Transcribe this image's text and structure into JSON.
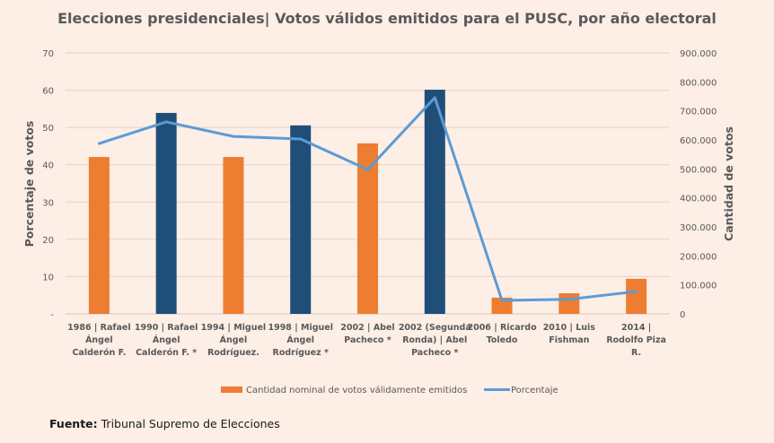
{
  "chart_data": {
    "type": "bar",
    "title": "Elecciones presidenciales| Votos válidos emitidos para el PUSC, por año electoral",
    "categories": [
      [
        "1986 | Rafael",
        "Ángel",
        "Calderón F."
      ],
      [
        "1990 | Rafael",
        "Ángel",
        "Calderón F. *"
      ],
      [
        "1994 | Miguel",
        "Ángel",
        "Rodríguez."
      ],
      [
        "1998 | Miguel",
        "Ángel",
        "Rodríguez *"
      ],
      [
        "2002 | Abel",
        "Pacheco *"
      ],
      [
        "2002 (Segunda",
        "Ronda) | Abel",
        "Pacheco *"
      ],
      [
        "2006 | Ricardo",
        "Toledo"
      ],
      [
        "2010 | Luis",
        "Fishman"
      ],
      [
        "2014 |",
        "Rodolfo Piza",
        "R."
      ]
    ],
    "series": [
      {
        "name": "Cantidad nominal de votos válidamente emitidos",
        "type": "bar",
        "axis": "right",
        "values": [
          541000,
          693000,
          541000,
          650000,
          588000,
          773000,
          56000,
          71000,
          121000
        ],
        "colors": [
          "#ED7D31",
          "#1F4E79",
          "#ED7D31",
          "#1F4E79",
          "#ED7D31",
          "#1F4E79",
          "#ED7D31",
          "#ED7D31",
          "#ED7D31"
        ]
      },
      {
        "name": "Porcentaje",
        "type": "line",
        "axis": "left",
        "values": [
          45.7,
          51.5,
          47.6,
          46.9,
          38.7,
          58.0,
          3.6,
          3.9,
          6.0
        ],
        "color": "#5B9BD5"
      }
    ],
    "ylabel": "Porcentaje de votos",
    "ylim": [
      0,
      70
    ],
    "yticks": [
      "-",
      "10",
      "20",
      "30",
      "40",
      "50",
      "60",
      "70"
    ],
    "y2label": "Cantidad de votos",
    "y2lim": [
      0,
      900000
    ],
    "y2ticks": [
      "0",
      "100.000",
      "200.000",
      "300.000",
      "400.000",
      "500.000",
      "600.000",
      "700.000",
      "800.000",
      "900.000"
    ],
    "grid": true,
    "legend_position": "bottom",
    "legend": [
      {
        "label": "Cantidad nominal de votos válidamente emitidos",
        "color": "#ED7D31",
        "kind": "bar"
      },
      {
        "label": "Porcentaje",
        "color": "#5B9BD5",
        "kind": "line"
      }
    ]
  },
  "source": {
    "label": "Fuente:",
    "text": " Tribunal Supremo de Elecciones"
  }
}
